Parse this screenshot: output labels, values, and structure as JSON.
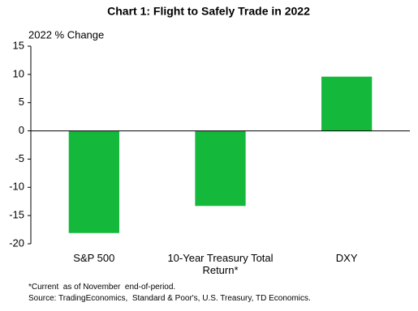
{
  "chart_data": {
    "type": "bar",
    "title": "Chart 1: Flight to Safely Trade in 2022",
    "y_axis_label": "2022 % Change",
    "categories": [
      "S&P 500",
      "10-Year Treasury Total Return*",
      "DXY"
    ],
    "values": [
      -18.1,
      -13.3,
      9.6
    ],
    "color": "#14b83a",
    "ylim": [
      -20,
      15
    ],
    "yticks": [
      -20,
      -15,
      -10,
      -5,
      0,
      5,
      10,
      15
    ],
    "grid": false,
    "footnotes": [
      "*Current  as of November  end-of-period.",
      "Source: TradingEconomics,  Standard & Poor's, U.S. Treasury, TD Economics."
    ]
  }
}
